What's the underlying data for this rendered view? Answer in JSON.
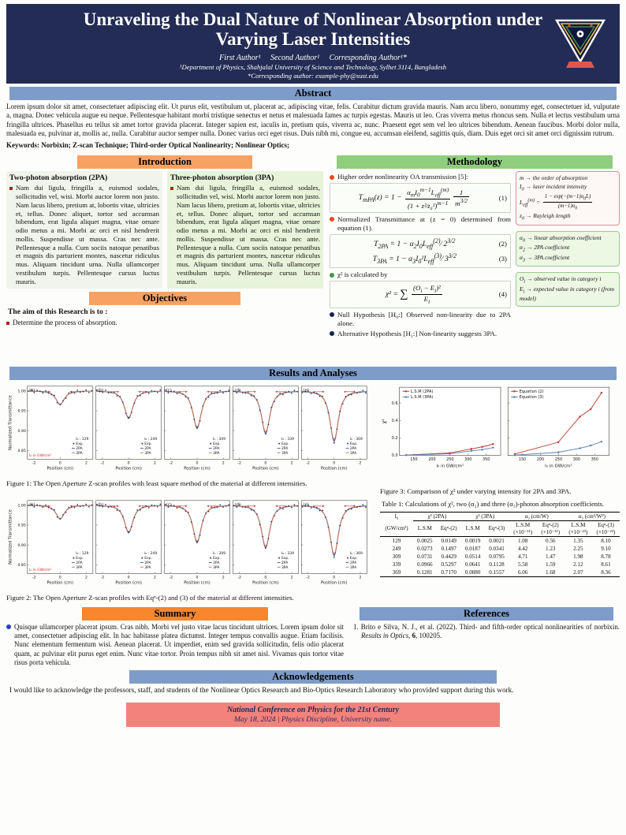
{
  "header": {
    "title": "Unraveling the Dual Nature of Nonlinear Absorption under Varying Laser Intensities",
    "authors": "First Author¹  Second Author¹  Corresponding Author¹*",
    "affiliation": "¹Department of Physics, Shahjalal University of Science and Technology, Sylhet 3114, Bangladesh",
    "corresponding": "*Corresponding author: example-phy@sust.edu",
    "logo": "university-emblem"
  },
  "abstract": {
    "heading": "Abstract",
    "body": "Lorem ipsum dolor sit amet, consectetuer adipiscing elit. Ut purus elit, vestibulum ut, placerat ac, adipiscing vitae, felis. Curabitur dictum gravida mauris. Nam arcu libero, nonummy eget, consectetuer id, vulputate a, magna. Donec vehicula augue eu neque. Pellentesque habitant morbi tristique senectus et netus et malesuada fames ac turpis egestas. Mauris ut leo. Cras viverra metus rhoncus sem. Nulla et lectus vestibulum urna fringilla ultrices. Phasellus eu tellus sit amet tortor gravida placerat. Integer sapien est, iaculis in, pretium quis, viverra ac, nunc. Praesent eget sem vel leo ultrices bibendum. Aenean faucibus. Morbi dolor nulla, malesuada eu, pulvinar at, mollis ac, nulla. Curabitur auctor semper nulla. Donec varius orci eget risus. Duis nibh mi, congue eu, accumsan eleifend, sagittis quis, diam. Duis eget orci sit amet orci dignissim rutrum.",
    "keywords": "Keywords: Norbixin; Z-scan Technique; Third-order Optical Nonlinearity; Nonlinear Optics;"
  },
  "introduction": {
    "heading": "Introduction",
    "col2pa": {
      "title": "Two-photon absorption (2PA)",
      "body": "Nam dui ligula, fringilla a, euismod sodales, sollicitudin vel, wisi. Morbi auctor lorem non justo. Nam lacus libero, pretium at, lobortis vitae, ultricies et, tellus. Donec aliquet, tortor sed accumsan bibendum, erat ligula aliquet magna, vitae ornare odio metus a mi. Morbi ac orci et nisl hendrerit mollis. Suspendisse ut massa. Cras nec ante. Pellentesque a nulla. Cum sociis natoque penatibus et magnis dis parturient montes, nascetur ridiculus mus. Aliquam tincidunt urna. Nulla ullamcorper vestibulum turpis. Pellentesque cursus luctus mauris."
    },
    "col3pa": {
      "title": "Three-photon absorption (3PA)",
      "body": "Nam dui ligula, fringilla a, euismod sodales, sollicitudin vel, wisi. Morbi auctor lorem non justo. Nam lacus libero, pretium at, lobortis vitae, ultricies et, tellus. Donec aliquet, tortor sed accumsan bibendum, erat ligula aliquet magna, vitae ornare odio metus a mi. Morbi ac orci et nisl hendrerit mollis. Suspendisse ut massa. Cras nec ante. Pellentesque a nulla. Cum sociis natoque penatibus et magnis dis parturient montes, nascetur ridiculus mus. Aliquam tincidunt urna. Nulla ullamcorper vestibulum turpis. Pellentesque cursus luctus mauris."
    }
  },
  "objectives": {
    "heading": "Objectives",
    "lead": "The aim of this Research is to :",
    "item1": "Determine the process of absorption."
  },
  "methodology": {
    "heading": "Methodology",
    "b1": "Higher order nonlinearity OA transmission [5]:",
    "b2": "Normalized Transmittance at (z = 0) determined from equation (1).",
    "b3": "χ² is calculated by",
    "b4": "Null Hypothesis [H₀:] Observed non-linearity due to 2PA alone.",
    "b5": "Alternative Hypothesis [H₁:] Non-linearity suggests 3PA.",
    "eq1_html": "T<sub>mPA</sub>(z) = 1 − <span class='frac'><span class='fnum'>α<sub>m</sub>I<sub>0</sub><sup>m−1</sup>L<sub>eff</sub><sup>(m)</sup></span><span class='fden'>(1 + z²⁄z₀²)<sup>m−1</sup></span></span><span class='frac'><span class='fnum'>1</span><span class='fden'>m<sup>3/2</sup></span></span>",
    "eq1_no": "(1)",
    "eq2_html": "T<sub>2PA</sub> = 1 − α<sub>2</sub>I<sub>0</sub>L<sub>eff</sub><sup>(2)</sup>⁄ 2<sup>3/2</sup>",
    "eq2_no": "(2)",
    "eq3_html": "T<sub>3PA</sub> = 1 − α<sub>3</sub>I<sub>0</sub>²L<sub>eff</sub><sup>(3)</sup>⁄ 3<sup>3/2</sup>",
    "eq3_no": "(3)",
    "eq4_html": "χ² = <span class='bigsum'>∑</span> <span class='frac'><span class='fnum'>(O<sub>i</sub> − E<sub>i</sub>)²</span><span class='fden'>E<sub>i</sub></span></span>",
    "eq4_no": "(4)",
    "box_m_html": "m → the order of absorption<br>I<sub>0</sub> → laser incident intensity<br>L<sub>eff</sub><sup>(m)</sup> = <span class='frac'><span class='fnum'>1 − exp(−(m−1)α<sub>0</sub>L)</span><span class='fden'>(m−1)α<sub>0</sub></span></span><br>z<sub>0</sub> → Rayleigh length",
    "box_alpha_html": "α<sub>0</sub> → linear absorption coefficient<br>α<sub>2</sub> → 2PA coefficient<br>α<sub>3</sub> → 3PA coefficient",
    "box_oe_html": "O<sub>i</sub> → observed value in category <i>i</i><br>E<sub>i</sub> → expected value in category <i>i</i> (from model)"
  },
  "results": {
    "heading": "Results and Analyses",
    "fig1_caption": "Figure 1: The Open Aperture Z-scan profiles with least square method of the material at different intensities.",
    "fig2_caption": "Figure 2: The Open Aperture Z-scan profiles with Eqⁿ-(2) and (3) of the material at different intensities.",
    "fig3_caption": "Figure 3: Comparison of χ² under varying intensity for 2PA and 3PA."
  },
  "table1": {
    "caption": "Table 1: Calculations of χ², two (α₂) and three (α₃)-photon absorption coefficients.",
    "groups": [
      {
        "label": "I₀",
        "sub": [
          "(GW/cm²)"
        ]
      },
      {
        "label": "χ² (2PA)",
        "sub": [
          "L.S.M",
          "Eqⁿ-(2)"
        ]
      },
      {
        "label": "χ² (3PA)",
        "sub": [
          "L.S.M",
          "Eqⁿ-(3)"
        ]
      },
      {
        "label": "α₂ (cm/W)",
        "sub": [
          "L.S.M\n(×10⁻¹¹)",
          "Eqⁿ-(2)\n(×10⁻¹¹)"
        ]
      },
      {
        "label": "α₃ (cm³/W²)",
        "sub": [
          "L.S.M\n(×10⁻²³)",
          "Eqⁿ-(3)\n(×10⁻²³)"
        ]
      }
    ],
    "rows": [
      [
        "129",
        "0.0025",
        "0.0149",
        "0.0019",
        "0.0021",
        "1.08",
        "0.56",
        "1.35",
        "8.10"
      ],
      [
        "249",
        "0.0273",
        "0.1497",
        "0.0187",
        "0.0341",
        "4.42",
        "1.23",
        "2.25",
        "9.10"
      ],
      [
        "309",
        "0.0731",
        "0.4429",
        "0.0514",
        "0.0795",
        "4.71",
        "1.47",
        "1.98",
        "8.78"
      ],
      [
        "339",
        "0.0966",
        "0.5297",
        "0.0641",
        "0.1128",
        "5.58",
        "1.59",
        "2.12",
        "8.61"
      ],
      [
        "369",
        "0.1281",
        "0.7170",
        "0.0880",
        "0.1557",
        "6.06",
        "1.68",
        "2.07",
        "8.36"
      ]
    ]
  },
  "summary": {
    "heading": "Summary",
    "body": "Quisque ullamcorper placerat ipsum. Cras nibh. Morbi vel justo vitae lacus tincidunt ultrices. Lorem ipsum dolor sit amet, consectetuer adipiscing elit. In hac habitasse platea dictumst. Integer tempus convallis augue. Etiam facilisis. Nunc elementum fermentum wisi. Aenean placerat. Ut imperdiet, enim sed gravida sollicitudin, felis odio placerat quam, ac pulvinar elit purus eget enim. Nunc vitae tortor. Proin tempus nibh sit amet nisl. Vivamus quis tortor vitae risus porta vehicula."
  },
  "references": {
    "heading": "References",
    "item1_html": "1. Brito e Silva, N. J., et al. (2022). Third- and fifth-order optical nonlinearities of norbixin. <i>Results in Optics</i>, <b>6</b>, 100205."
  },
  "acknowledgements": {
    "heading": "Acknowledgements",
    "body": "I would like to acknowledge the professors, staff, and students of the Nonlinear Optics Research and Bio-Optics Research Laboratory who provided support during this work."
  },
  "footer": {
    "line1": "National Conference on Physics for the 21st Century",
    "line2": "May 18, 2024  |  Physics Discipline, University name."
  },
  "colors": {
    "banner": "#232c55",
    "header_blue": "#7e9cc9",
    "header_orange": "#f7a263",
    "header_orange_strong": "#f8862d",
    "header_green": "#8fce7d",
    "footer_pink": "#f3827b",
    "curve_2pa": "#3a5fa8",
    "curve_3pa": "#e0703c",
    "exp_marker": "#25356f",
    "annotation_red": "#cc2222"
  },
  "chart_data": [
    {
      "id": "figure1",
      "type": "line",
      "title": "Open Aperture Z-scan profiles (least square method)",
      "xlabel": "Position (cm)",
      "ylabel": "Normalized Transmittance",
      "xlim": [
        -2.5,
        2.5
      ],
      "ylim": [
        0.83,
        1.01
      ],
      "xticks": [
        -2,
        0,
        2
      ],
      "yticks": [
        1.0,
        0.95,
        0.9,
        0.85
      ],
      "legend": [
        "Exp.",
        "2PA",
        "3PA"
      ],
      "note": "I₀ in GW/cm²",
      "curve_model": "T(z) = 1 - ΔT / (1 + z²/w²)^p, dip centered at z = 0",
      "subplots": [
        {
          "label": "(a)",
          "I0": 129,
          "intensity_label": "I₀ : 129",
          "min_T": 0.965
        },
        {
          "label": "(b)",
          "I0": 249,
          "intensity_label": "I₀ : 249",
          "min_T": 0.93
        },
        {
          "label": "(c)",
          "I0": 309,
          "intensity_label": "I₀ : 309",
          "min_T": 0.905
        },
        {
          "label": "(d)",
          "I0": 339,
          "intensity_label": "I₀ : 339",
          "min_T": 0.892
        },
        {
          "label": "(e)",
          "I0": 369,
          "intensity_label": "I₀ : 369",
          "min_T": 0.872
        }
      ]
    },
    {
      "id": "figure2",
      "type": "line",
      "title": "Open Aperture Z-scan profiles with Eqn-(2) and (3)",
      "xlabel": "Position (cm)",
      "ylabel": "Normalized Transmittance",
      "xlim": [
        -2.5,
        2.5
      ],
      "ylim": [
        0.83,
        1.01
      ],
      "xticks": [
        -2,
        0,
        2
      ],
      "yticks": [
        1.0,
        0.95,
        0.9,
        0.85
      ],
      "legend": [
        "Exp.",
        "2PA",
        "3PA"
      ],
      "note": "I₀ in GW/cm²",
      "curve_model": "T(z) = 1 - ΔT / (1 + z²/w²)^p, dip centered at z = 0",
      "subplots": [
        {
          "label": "(a)",
          "I0": 129,
          "intensity_label": "I₀ : 129",
          "min_T": 0.965
        },
        {
          "label": "(b)",
          "I0": 249,
          "intensity_label": "I₀ : 249",
          "min_T": 0.93
        },
        {
          "label": "(c)",
          "I0": 309,
          "intensity_label": "I₀ : 309",
          "min_T": 0.905
        },
        {
          "label": "(d)",
          "I0": 339,
          "intensity_label": "I₀ : 339",
          "min_T": 0.892
        },
        {
          "label": "(e)",
          "I0": 369,
          "intensity_label": "I₀ : 369",
          "min_T": 0.872
        }
      ]
    },
    {
      "id": "figure3",
      "type": "line",
      "title": "Comparison of χ² under varying intensity for 2PA and 3PA",
      "xlabel": "I₀ in GW/cm²",
      "ylabel": "χ²",
      "x": [
        129,
        249,
        309,
        339,
        369
      ],
      "xticks": [
        150,
        200,
        250,
        300,
        350
      ],
      "yticks": [
        0.0,
        0.2,
        0.4,
        0.6
      ],
      "ylim": [
        0,
        0.78
      ],
      "panels": [
        {
          "series": [
            {
              "name": "L.S.M (2PA)",
              "color": "#c0392b",
              "values": [
                0.0025,
                0.0273,
                0.0731,
                0.0966,
                0.1281
              ]
            },
            {
              "name": "L.S.M (3PA)",
              "color": "#5b7fb5",
              "values": [
                0.0019,
                0.0187,
                0.0514,
                0.0641,
                0.088
              ]
            }
          ]
        },
        {
          "series": [
            {
              "name": "Equation (2)",
              "color": "#c0392b",
              "values": [
                0.0149,
                0.1497,
                0.4429,
                0.5297,
                0.717
              ]
            },
            {
              "name": "Equation (3)",
              "color": "#5b7fb5",
              "values": [
                0.0021,
                0.0341,
                0.0795,
                0.1128,
                0.1557
              ]
            }
          ]
        }
      ]
    }
  ]
}
